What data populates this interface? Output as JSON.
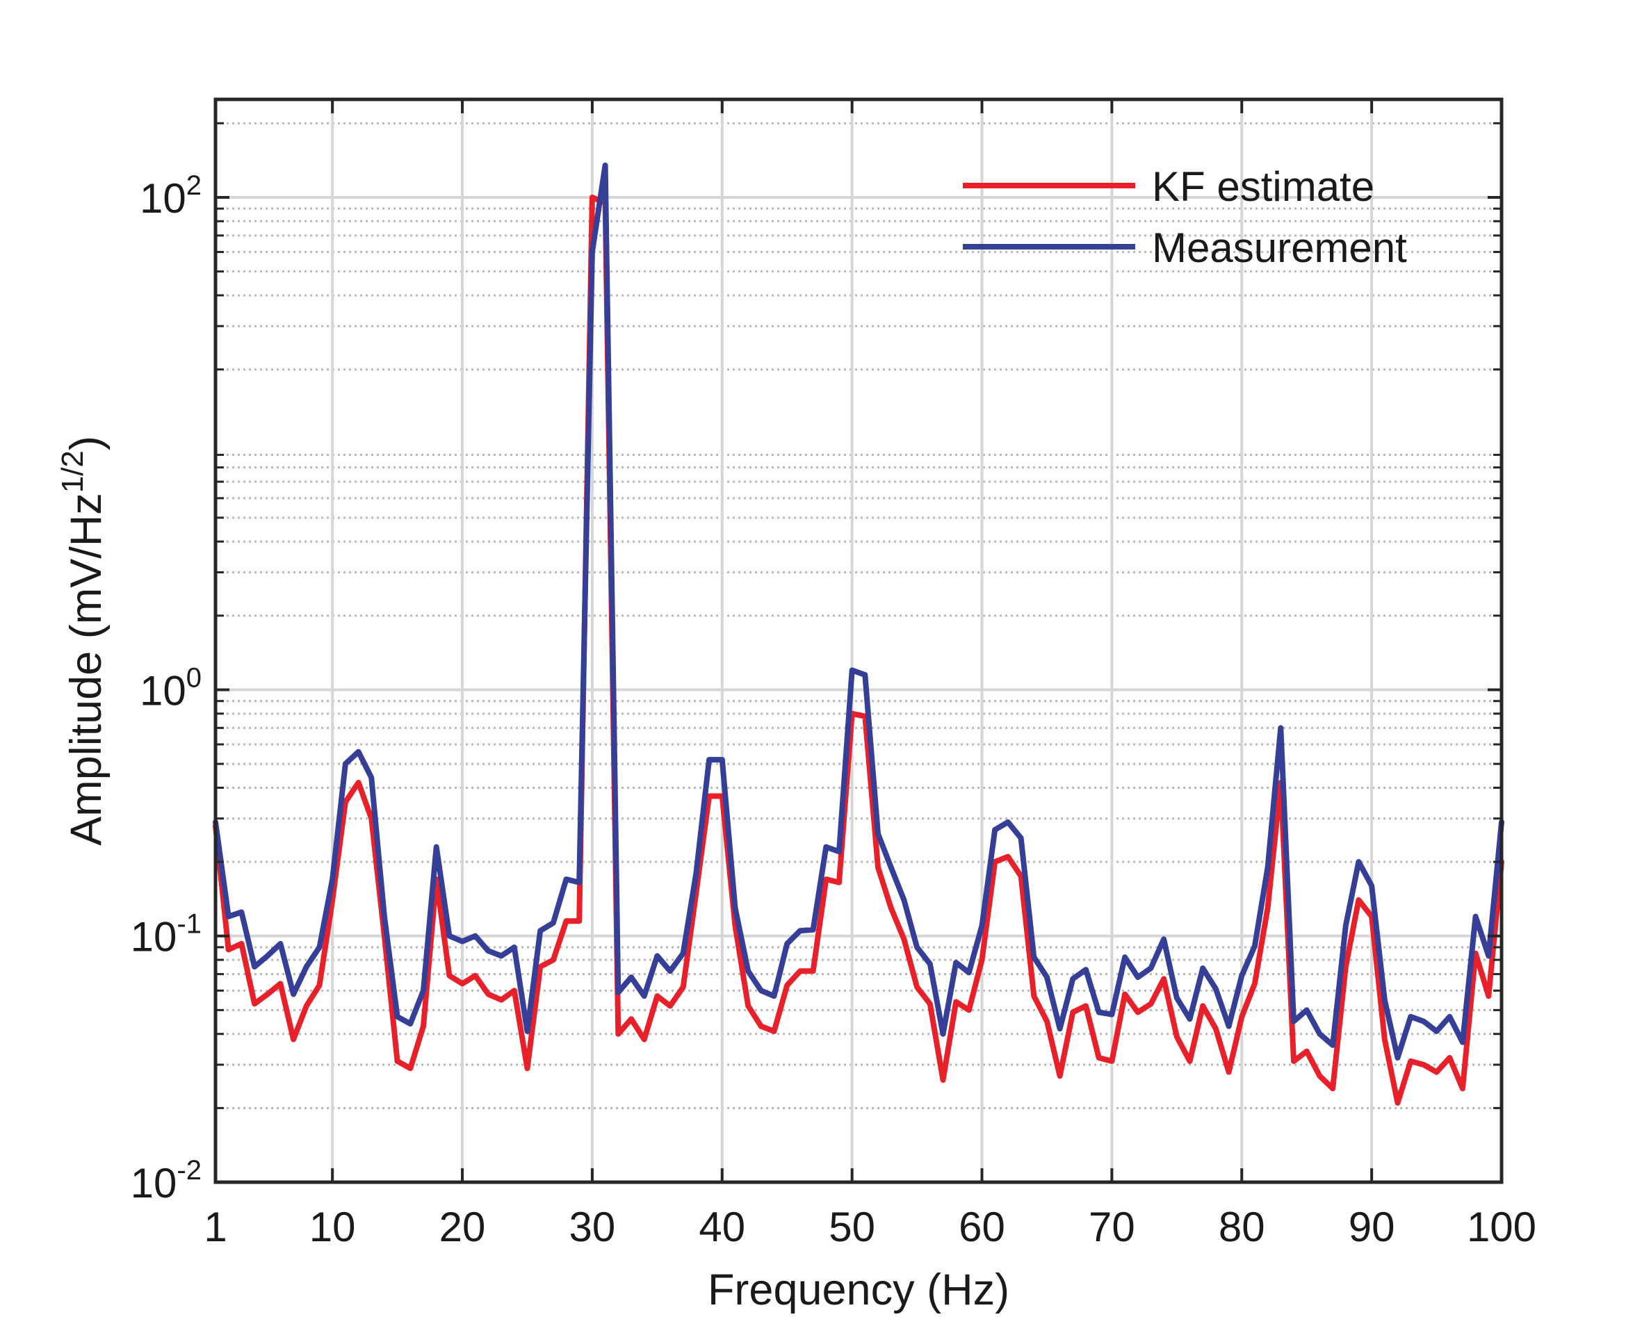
{
  "chart_data": {
    "type": "line",
    "title": "",
    "xlabel": "Frequency (Hz)",
    "ylabel": "Amplitude (mV/Hz",
    "ylabel_sup": "1/2",
    "ylabel_close": ")",
    "xlim": [
      1,
      100
    ],
    "ylim": [
      0.01,
      250
    ],
    "yscale": "log",
    "grid": true,
    "legend_position": "top-right",
    "x_ticks": [
      1,
      10,
      20,
      30,
      40,
      50,
      60,
      70,
      80,
      90,
      100
    ],
    "x_tick_labels": [
      "1",
      "10",
      "20",
      "30",
      "40",
      "50",
      "60",
      "70",
      "80",
      "90",
      "100"
    ],
    "y_ticks": [
      {
        "value": 100,
        "base": "10",
        "exp": "2"
      },
      {
        "value": 1,
        "base": "10",
        "exp": "0"
      },
      {
        "value": 0.1,
        "base": "10",
        "exp": "-1"
      },
      {
        "value": 0.01,
        "base": "10",
        "exp": "-2"
      }
    ],
    "x": [
      1,
      2,
      3,
      4,
      5,
      6,
      7,
      8,
      9,
      10,
      11,
      12,
      13,
      14,
      15,
      16,
      17,
      18,
      19,
      20,
      21,
      22,
      23,
      24,
      25,
      26,
      27,
      28,
      29,
      30,
      31,
      32,
      33,
      34,
      35,
      36,
      37,
      38,
      39,
      40,
      41,
      42,
      43,
      44,
      45,
      46,
      47,
      48,
      49,
      50,
      51,
      52,
      53,
      54,
      55,
      56,
      57,
      58,
      59,
      60,
      61,
      62,
      63,
      64,
      65,
      66,
      67,
      68,
      69,
      70,
      71,
      72,
      73,
      74,
      75,
      76,
      77,
      78,
      79,
      80,
      81,
      82,
      83,
      84,
      85,
      86,
      87,
      88,
      89,
      90,
      91,
      92,
      93,
      94,
      95,
      96,
      97,
      98,
      99,
      100
    ],
    "series": [
      {
        "name": "KF estimate",
        "color": "#e8202a",
        "values": [
          0.28,
          0.088,
          0.093,
          0.053,
          0.058,
          0.064,
          0.038,
          0.052,
          0.063,
          0.14,
          0.35,
          0.42,
          0.3,
          0.1,
          0.031,
          0.029,
          0.043,
          0.17,
          0.069,
          0.064,
          0.069,
          0.058,
          0.055,
          0.06,
          0.029,
          0.075,
          0.08,
          0.115,
          0.115,
          100,
          95,
          0.04,
          0.046,
          0.038,
          0.057,
          0.052,
          0.062,
          0.15,
          0.37,
          0.37,
          0.11,
          0.052,
          0.043,
          0.041,
          0.063,
          0.072,
          0.072,
          0.17,
          0.165,
          0.8,
          0.78,
          0.19,
          0.13,
          0.097,
          0.062,
          0.053,
          0.026,
          0.054,
          0.05,
          0.08,
          0.2,
          0.21,
          0.175,
          0.057,
          0.045,
          0.027,
          0.049,
          0.052,
          0.032,
          0.031,
          0.058,
          0.049,
          0.053,
          0.067,
          0.039,
          0.031,
          0.052,
          0.042,
          0.028,
          0.047,
          0.064,
          0.13,
          0.42,
          0.031,
          0.034,
          0.027,
          0.024,
          0.075,
          0.14,
          0.12,
          0.038,
          0.021,
          0.031,
          0.03,
          0.028,
          0.032,
          0.024,
          0.085,
          0.057,
          0.2
        ]
      },
      {
        "name": "Measurement",
        "color": "#363f97",
        "values": [
          0.29,
          0.12,
          0.125,
          0.075,
          0.083,
          0.093,
          0.058,
          0.075,
          0.09,
          0.17,
          0.5,
          0.56,
          0.44,
          0.12,
          0.047,
          0.044,
          0.06,
          0.23,
          0.1,
          0.095,
          0.1,
          0.087,
          0.083,
          0.09,
          0.041,
          0.105,
          0.113,
          0.17,
          0.165,
          60,
          135,
          0.059,
          0.068,
          0.057,
          0.083,
          0.072,
          0.085,
          0.18,
          0.52,
          0.52,
          0.13,
          0.072,
          0.06,
          0.057,
          0.093,
          0.105,
          0.106,
          0.23,
          0.22,
          1.2,
          1.15,
          0.26,
          0.19,
          0.14,
          0.09,
          0.077,
          0.04,
          0.078,
          0.071,
          0.11,
          0.27,
          0.29,
          0.25,
          0.082,
          0.068,
          0.042,
          0.067,
          0.073,
          0.049,
          0.048,
          0.082,
          0.068,
          0.074,
          0.097,
          0.056,
          0.046,
          0.074,
          0.061,
          0.043,
          0.069,
          0.091,
          0.19,
          0.7,
          0.045,
          0.05,
          0.04,
          0.036,
          0.11,
          0.2,
          0.16,
          0.055,
          0.032,
          0.047,
          0.045,
          0.041,
          0.047,
          0.037,
          0.12,
          0.083,
          0.29
        ]
      }
    ]
  }
}
